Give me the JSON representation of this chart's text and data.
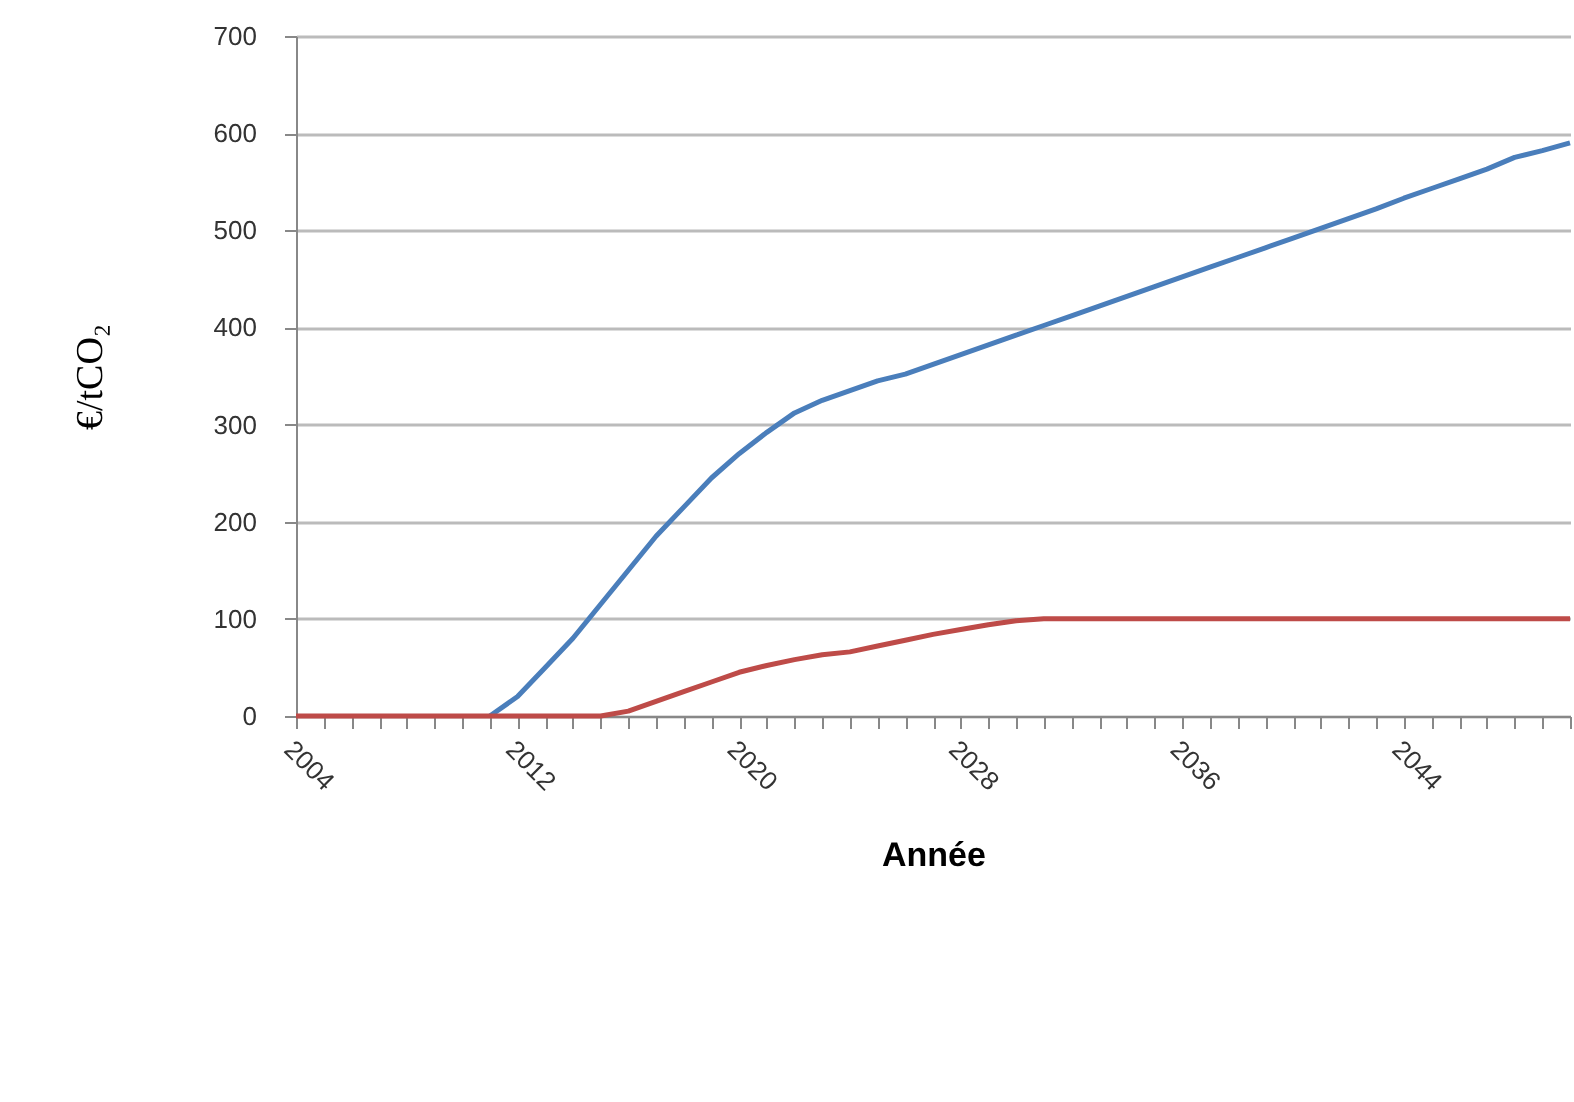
{
  "chart_data": {
    "type": "line",
    "xlabel": "Année",
    "ylabel": "€/tCO₂",
    "categories": [
      "2004",
      null,
      null,
      null,
      null,
      null,
      null,
      null,
      "2012",
      null,
      null,
      null,
      null,
      null,
      null,
      null,
      "2020",
      null,
      null,
      null,
      null,
      null,
      null,
      null,
      "2028",
      null,
      null,
      null,
      null,
      null,
      null,
      null,
      "2036",
      null,
      null,
      null,
      null,
      null,
      null,
      null,
      "2044",
      null,
      null,
      null,
      null,
      null,
      null
    ],
    "series": [
      {
        "color": "#4a7ebb",
        "values": [
          null,
          null,
          null,
          null,
          null,
          null,
          null,
          0,
          20,
          50,
          80,
          115,
          150,
          185,
          215,
          245,
          270,
          292,
          312,
          325,
          335,
          345,
          352,
          362,
          372,
          382,
          392,
          402,
          412,
          422,
          432,
          442,
          452,
          462,
          472,
          482,
          492,
          502,
          512,
          522,
          533,
          543,
          553,
          563,
          575,
          582,
          590
        ]
      },
      {
        "color": "#be4b48",
        "values": [
          0,
          0,
          0,
          0,
          0,
          0,
          0,
          0,
          0,
          0,
          0,
          0,
          5,
          15,
          25,
          35,
          45,
          52,
          58,
          63,
          66,
          72,
          78,
          84,
          89,
          94,
          98,
          100,
          100,
          100,
          100,
          100,
          100,
          100,
          100,
          100,
          100,
          100,
          100,
          100,
          100,
          100,
          100,
          100,
          100,
          100,
          100
        ]
      }
    ],
    "ylim": [
      0,
      700
    ],
    "yticks": [
      0,
      100,
      200,
      300,
      400,
      500,
      600,
      700
    ],
    "grid": "y",
    "marker": "none",
    "line_style": "solid"
  }
}
